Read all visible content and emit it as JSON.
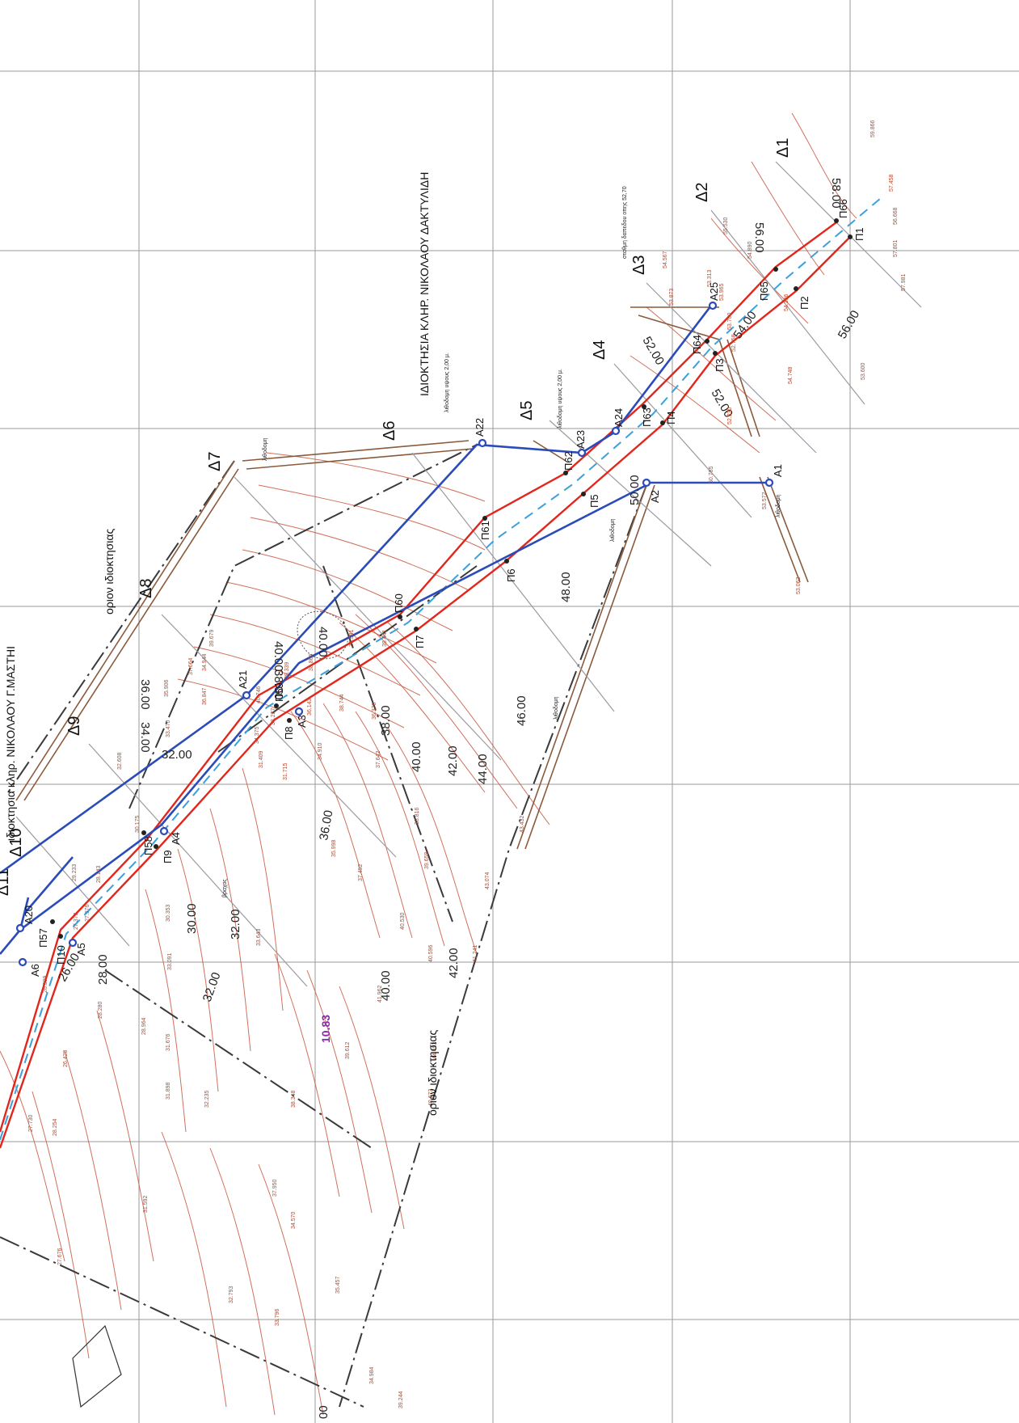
{
  "drawing": {
    "owner_note": "ΙΔΙΟΚΤΗΣΙΑ ΚΛΗΡ. ΝΙΚΟΛΑΟΥ ΔΑΚΤΥΛΙΔΗ",
    "cut_owner_note": "ιδιοκτησια κληρ. ΝΙΚΟΛΑΟΥ Γ.ΜΑΣΤΗΙ",
    "property_limit_top": "οριον ιδιοκτησιας",
    "property_limit_bottom": "οριον ιδιοκτησιας",
    "wall_note_1": "λιθοδομη υψους 2,00 μ.",
    "wall_note_2": "λιθοδομη υψους 2,00 μ.",
    "wall_note_3": "σταθμη δαπεδου οπης 52,70",
    "wall_labels": [
      "λιθοδομη",
      "λιθοδομη",
      "λιθοδομη",
      "λιθοδομη"
    ],
    "rock_label": "βραχος",
    "area_label": "10.83",
    "cut_bottom_label": "00"
  },
  "sections": [
    "Δ1",
    "Δ2",
    "Δ3",
    "Δ4",
    "Δ5",
    "Δ6",
    "Δ7",
    "Δ8",
    "Δ9",
    "Δ10",
    "Δ11"
  ],
  "red_points": [
    "Π1",
    "Π2",
    "Π3",
    "Π4",
    "Π5",
    "Π6",
    "Π7",
    "Π8",
    "Π9",
    "Π10",
    "Π57",
    "Π58",
    "Π59",
    "Π60",
    "Π61",
    "Π62",
    "Π63",
    "Π64",
    "Π65",
    "Π66"
  ],
  "blue_points": [
    "A1",
    "A2",
    "A3",
    "A4",
    "A5",
    "A6",
    "A20",
    "A21",
    "A22",
    "A23",
    "A24",
    "A25"
  ],
  "contour_labels": [
    "58.00",
    "56.00",
    "56.00",
    "54.00",
    "52.00",
    "52.00",
    "50.00",
    "48.00",
    "46.00",
    "44.00",
    "42.00",
    "42.00",
    "40.00",
    "40.00",
    "40.00",
    "40.00",
    "38.00",
    "38.00",
    "36.00",
    "36.00",
    "34.00",
    "32.00",
    "32.00",
    "32.00",
    "30.00",
    "28.00",
    "26.00"
  ],
  "spot_heights": [
    "59.866",
    "57.458",
    "56.668",
    "57.801",
    "57.981",
    "55.530",
    "54.890",
    "54.567",
    "53.873",
    "53.965",
    "53.313",
    "54.396",
    "53.700",
    "52.758",
    "54.748",
    "53.600",
    "52.230",
    "50.785",
    "53.572",
    "53.062",
    "39.679",
    "37.664",
    "35.906",
    "36.847",
    "34.944",
    "33.470",
    "32.608",
    "30.175",
    "29.233",
    "28.143",
    "27.976",
    "27.373",
    "28.280",
    "26.599",
    "26.428",
    "27.730",
    "28.254",
    "27.676",
    "28.964",
    "31.676",
    "31.898",
    "31.592",
    "32.235",
    "32.793",
    "33.643",
    "33.091",
    "30.353",
    "29.339",
    "38.866",
    "37.581",
    "39.441",
    "38.744",
    "36.143",
    "34.910",
    "35.998",
    "37.492",
    "36.378",
    "37.642",
    "38.816",
    "39.659",
    "40.530",
    "40.596",
    "41.241",
    "43.432",
    "43.074",
    "44.453",
    "40.673",
    "41.962",
    "39.612",
    "38.348",
    "37.950",
    "34.570",
    "35.457",
    "33.796",
    "34.984",
    "39.244",
    "40.746",
    "34.375",
    "33.237",
    "31.715",
    "31.409",
    "32.700"
  ]
}
